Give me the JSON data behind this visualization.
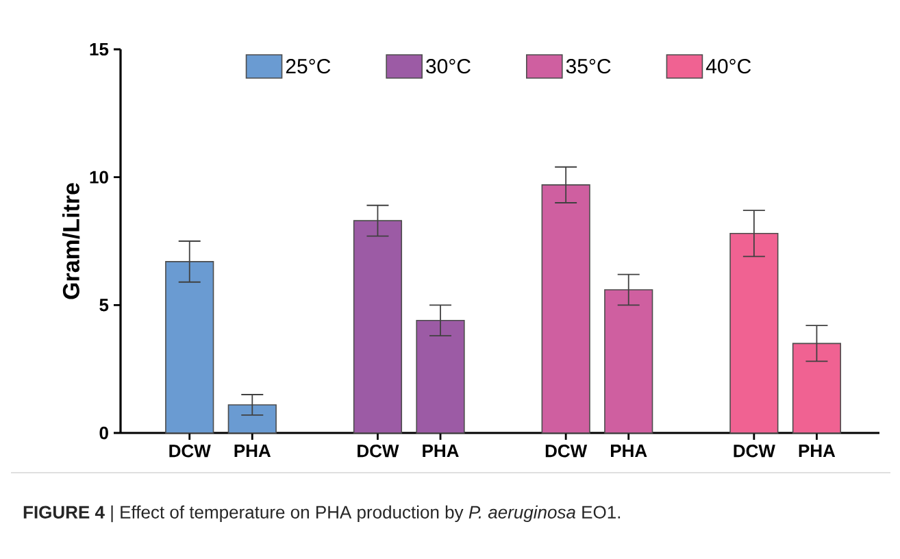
{
  "chart_data": {
    "type": "bar",
    "ylabel": "Gram/Litre",
    "categories": [
      "DCW",
      "PHA",
      "DCW",
      "PHA",
      "DCW",
      "PHA",
      "DCW",
      "PHA"
    ],
    "series": [
      {
        "name": "25°C",
        "color": "#6a9bd2",
        "values": [
          6.7,
          1.1,
          null,
          null,
          null,
          null,
          null,
          null
        ],
        "errors": [
          0.8,
          0.4,
          null,
          null,
          null,
          null,
          null,
          null
        ]
      },
      {
        "name": "30°C",
        "color": "#9c5ba5",
        "values": [
          null,
          null,
          8.3,
          4.4,
          null,
          null,
          null,
          null
        ],
        "errors": [
          null,
          null,
          0.6,
          0.6,
          null,
          null,
          null,
          null
        ]
      },
      {
        "name": "35°C",
        "color": "#cf5fa0",
        "values": [
          null,
          null,
          null,
          null,
          9.7,
          5.6,
          null,
          null
        ],
        "errors": [
          null,
          null,
          null,
          null,
          0.7,
          0.6,
          null,
          null
        ]
      },
      {
        "name": "40°C",
        "color": "#f06292",
        "values": [
          null,
          null,
          null,
          null,
          null,
          null,
          7.8,
          3.5
        ],
        "errors": [
          null,
          null,
          null,
          null,
          null,
          null,
          0.9,
          0.7
        ]
      }
    ],
    "ylim": [
      0,
      15
    ],
    "yticks": [
      0,
      5,
      10,
      15
    ],
    "legend": "top",
    "annotations": [
      "**FIGURE 4** | Effect of temperature on PHA production by *P. aeruginosa* EO1."
    ]
  }
}
